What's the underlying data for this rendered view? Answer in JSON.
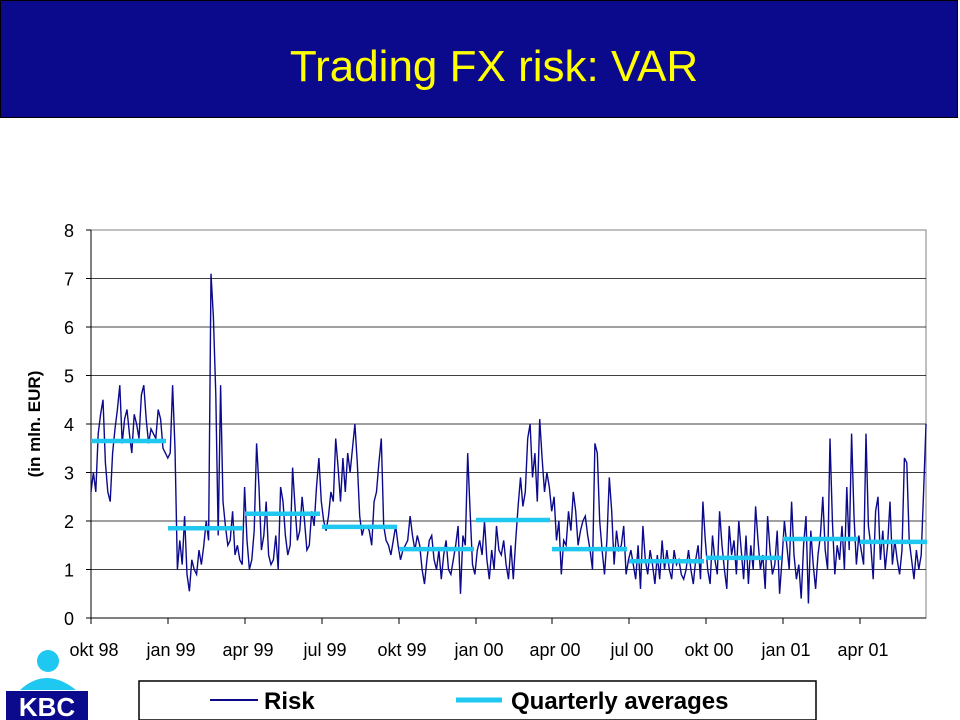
{
  "header": {
    "title": "Trading FX risk: VAR"
  },
  "logo": {
    "text": "KBC",
    "color": "#0c0a8c",
    "accent": "#1ec8f0"
  },
  "colors": {
    "banner": "#0c0a8c",
    "title": "#ffff00",
    "risk_line": "#0c0a8c",
    "average_line": "#1ec8f0",
    "plot_bg": "#ffffff"
  },
  "chart_data": {
    "type": "line",
    "title": "",
    "xlabel": "",
    "ylabel": "(in mln. EUR)",
    "ylim": [
      0,
      8
    ],
    "yticks": [
      0,
      1,
      2,
      3,
      4,
      5,
      6,
      7,
      8
    ],
    "grid": true,
    "legend_position": "bottom",
    "x_tick_labels": [
      "okt 98",
      "jan 99",
      "apr 99",
      "jul 99",
      "okt 99",
      "jan 00",
      "apr 00",
      "jul 00",
      "okt 00",
      "jan 01",
      "apr 01"
    ],
    "series": [
      {
        "name": "Risk",
        "style": "line",
        "color": "#0c0a8c",
        "values": [
          2.6,
          3.0,
          2.6,
          3.8,
          4.2,
          4.5,
          3.2,
          2.6,
          2.4,
          3.4,
          3.9,
          4.3,
          4.8,
          3.6,
          4.1,
          4.3,
          3.8,
          3.4,
          4.2,
          4.0,
          3.7,
          4.6,
          4.8,
          4.1,
          3.6,
          3.9,
          3.8,
          3.7,
          4.3,
          4.1,
          3.5,
          3.4,
          3.3,
          3.4,
          4.8,
          3.5,
          1.0,
          1.6,
          1.1,
          2.1,
          0.9,
          0.55,
          1.2,
          1.0,
          0.9,
          1.4,
          1.1,
          1.5,
          2.0,
          1.6,
          7.1,
          6.2,
          4.6,
          1.7,
          4.8,
          2.4,
          1.9,
          1.5,
          1.6,
          2.2,
          1.3,
          1.5,
          1.2,
          1.1,
          2.7,
          1.6,
          1.0,
          1.2,
          1.8,
          3.6,
          2.7,
          1.4,
          1.7,
          2.4,
          1.3,
          1.1,
          1.2,
          1.7,
          1.0,
          2.7,
          2.4,
          1.7,
          1.3,
          1.5,
          3.1,
          2.3,
          1.6,
          1.8,
          2.5,
          2.0,
          1.4,
          1.5,
          2.2,
          1.9,
          2.7,
          3.3,
          2.4,
          2.0,
          1.8,
          2.1,
          2.6,
          2.4,
          3.7,
          3.1,
          2.4,
          3.3,
          2.6,
          3.4,
          3.0,
          3.5,
          4.0,
          3.2,
          2.1,
          1.7,
          1.9,
          1.9,
          1.8,
          1.5,
          2.4,
          2.6,
          3.2,
          3.7,
          1.9,
          1.6,
          1.5,
          1.3,
          1.6,
          1.9,
          1.5,
          1.2,
          1.4,
          1.5,
          1.6,
          2.1,
          1.7,
          1.4,
          1.7,
          1.5,
          1.0,
          0.7,
          1.2,
          1.6,
          1.7,
          1.2,
          1.0,
          1.4,
          0.8,
          1.3,
          1.6,
          1.0,
          0.9,
          1.2,
          1.5,
          1.9,
          0.5,
          1.7,
          1.5,
          3.4,
          2.2,
          1.1,
          0.9,
          1.4,
          1.6,
          1.3,
          2.0,
          1.2,
          0.8,
          1.4,
          1.0,
          1.9,
          1.4,
          1.3,
          1.6,
          1.1,
          0.8,
          1.5,
          0.8,
          1.6,
          2.3,
          2.9,
          2.3,
          2.6,
          3.7,
          4.0,
          2.9,
          3.4,
          2.4,
          4.1,
          3.3,
          2.6,
          3.0,
          2.7,
          2.2,
          2.5,
          1.6,
          2.0,
          0.9,
          1.6,
          1.5,
          2.2,
          1.8,
          2.6,
          2.2,
          1.5,
          1.8,
          2.0,
          2.1,
          1.7,
          1.4,
          1.0,
          3.6,
          3.4,
          2.0,
          1.4,
          0.9,
          1.6,
          2.9,
          2.2,
          1.1,
          1.8,
          1.4,
          1.5,
          1.9,
          0.9,
          1.2,
          1.4,
          1.1,
          0.8,
          1.5,
          0.6,
          1.9,
          1.2,
          0.9,
          1.4,
          1.1,
          0.7,
          1.3,
          0.8,
          1.6,
          1.0,
          1.4,
          1.0,
          0.8,
          1.4,
          1.1,
          1.2,
          0.9,
          0.8,
          1.0,
          1.4,
          1.0,
          0.7,
          1.2,
          1.5,
          0.8,
          2.4,
          1.6,
          1.0,
          0.7,
          1.7,
          1.2,
          0.9,
          2.2,
          1.5,
          1.0,
          0.6,
          1.9,
          1.3,
          1.6,
          0.9,
          2.0,
          1.4,
          0.8,
          1.7,
          0.7,
          1.5,
          1.0,
          2.3,
          1.6,
          1.0,
          1.3,
          0.6,
          2.1,
          1.4,
          0.9,
          1.1,
          1.8,
          0.5,
          1.2,
          2.0,
          1.5,
          1.0,
          2.4,
          1.3,
          0.8,
          1.1,
          0.4,
          1.5,
          2.1,
          0.3,
          1.8,
          1.1,
          0.6,
          1.3,
          1.7,
          2.5,
          1.4,
          1.0,
          3.7,
          2.0,
          0.9,
          1.5,
          1.2,
          1.9,
          1.0,
          2.7,
          1.4,
          3.8,
          2.1,
          1.1,
          1.7,
          1.4,
          1.1,
          3.8,
          1.9,
          1.5,
          0.8,
          2.2,
          2.5,
          1.2,
          1.8,
          1.0,
          1.5,
          2.4,
          1.1,
          1.6,
          1.2,
          0.9,
          1.4,
          3.3,
          3.2,
          1.6,
          1.2,
          0.8,
          1.4,
          1.0,
          1.3,
          2.6,
          4.0
        ]
      },
      {
        "name": "Quarterly averages",
        "style": "step",
        "color": "#1ec8f0",
        "quarters": [
          "okt 98",
          "jan 99",
          "apr 99",
          "jul 99",
          "okt 99",
          "jan 00",
          "apr 00",
          "jul 00",
          "okt 00",
          "jan 01",
          "apr 01"
        ],
        "values": [
          3.65,
          1.85,
          2.15,
          1.88,
          1.42,
          2.02,
          1.42,
          1.17,
          1.24,
          1.63,
          1.57
        ]
      }
    ]
  }
}
